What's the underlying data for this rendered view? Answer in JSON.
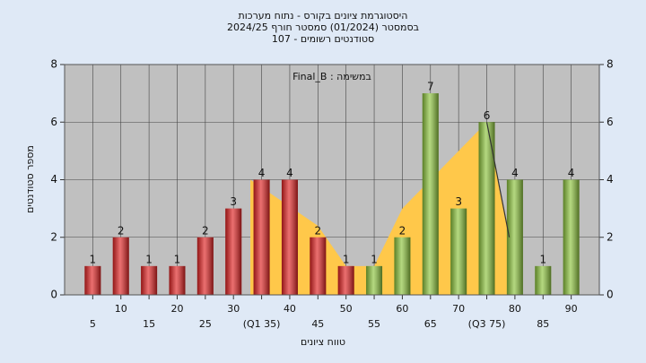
{
  "chart_data": {
    "type": "bar",
    "title": [
      "היסטוגרמת ציונים בקורס - נתוח מערכות",
      "בסמסטר  (01/2024)  סמסטר חורף 2024/25",
      "סטודנטים רשומים - 107"
    ],
    "annotation": "במשימה : Final_B",
    "xlabel": "טווח ציונים",
    "ylabel": "מספר סטודנטים",
    "x": [
      5,
      10,
      15,
      20,
      25,
      30,
      35,
      40,
      45,
      50,
      55,
      60,
      65,
      70,
      75,
      80,
      85,
      90
    ],
    "values": [
      1,
      2,
      1,
      1,
      2,
      3,
      4,
      4,
      2,
      1,
      1,
      2,
      7,
      3,
      6,
      4,
      1,
      4
    ],
    "colors": [
      "#e02222",
      "#e02222",
      "#e02222",
      "#e02222",
      "#e02222",
      "#e02222",
      "#e02222",
      "#e02222",
      "#e02222",
      "#e02222",
      "#8cc43c",
      "#8cc43c",
      "#8cc43c",
      "#8cc43c",
      "#8cc43c",
      "#8cc43c",
      "#8cc43c",
      "#8cc43c"
    ],
    "area": {
      "color": "#ffc84a",
      "x": [
        33,
        45,
        50,
        55,
        60,
        70,
        75,
        79
      ],
      "values": [
        4,
        2.4,
        1,
        1,
        3,
        5,
        6,
        2
      ]
    },
    "line": {
      "color": "#333333",
      "x": [
        75,
        79
      ],
      "values": [
        6,
        2
      ]
    },
    "xlim": [
      0,
      95
    ],
    "xticks": [
      5,
      10,
      15,
      20,
      25,
      30,
      {
        "value": 35,
        "label": "(Q1 35)"
      },
      40,
      45,
      50,
      55,
      60,
      65,
      70,
      {
        "value": 75,
        "label": "(Q3 75)"
      },
      80,
      85,
      90
    ],
    "ylim": [
      0,
      8
    ],
    "yticks": [
      0,
      2,
      4,
      6,
      8
    ],
    "y2lim": [
      0,
      8
    ],
    "y2ticks": [
      0,
      2,
      4,
      6,
      8
    ],
    "grid": true
  }
}
